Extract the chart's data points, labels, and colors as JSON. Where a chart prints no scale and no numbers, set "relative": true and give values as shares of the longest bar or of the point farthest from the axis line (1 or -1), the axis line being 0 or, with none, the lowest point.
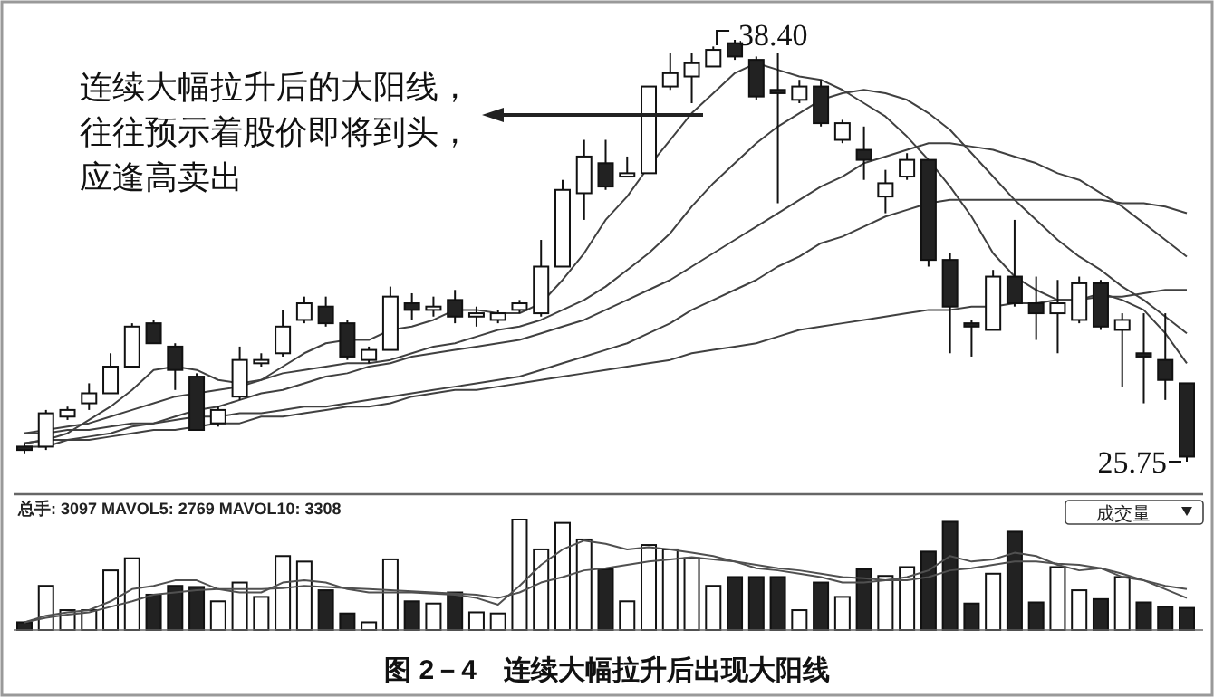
{
  "chart_data": [
    {
      "type": "candlestick",
      "title": "图 2－4　连续大幅拉升后出现大阳线",
      "categories": [
        null,
        null,
        null,
        null,
        null,
        null,
        null,
        null,
        null,
        null,
        null,
        null,
        null,
        null,
        null,
        null,
        null,
        null,
        null,
        null,
        null,
        null,
        null,
        null,
        null,
        null,
        null,
        null,
        null,
        null,
        null,
        null,
        null,
        null,
        null,
        null,
        null,
        null,
        null,
        null,
        null,
        null,
        null,
        null,
        null,
        null,
        null,
        null,
        null,
        null,
        null,
        null,
        null,
        null,
        null
      ],
      "ohlc": [
        [
          26.2,
          26.3,
          26.0,
          26.1
        ],
        [
          26.2,
          27.3,
          26.1,
          27.2
        ],
        [
          27.1,
          27.4,
          27.0,
          27.3
        ],
        [
          27.5,
          28.1,
          27.3,
          27.8
        ],
        [
          27.8,
          29.0,
          27.8,
          28.6
        ],
        [
          28.6,
          29.9,
          28.6,
          29.8
        ],
        [
          29.9,
          30.0,
          29.3,
          29.3
        ],
        [
          29.2,
          29.3,
          27.9,
          28.5
        ],
        [
          28.3,
          28.4,
          26.7,
          26.7
        ],
        [
          26.9,
          27.4,
          26.8,
          27.3
        ],
        [
          27.7,
          29.2,
          27.6,
          28.8
        ],
        [
          28.7,
          29.0,
          28.6,
          28.8
        ],
        [
          29.0,
          30.3,
          28.9,
          29.8
        ],
        [
          30.0,
          30.7,
          29.9,
          30.5
        ],
        [
          30.4,
          30.7,
          29.8,
          29.9
        ],
        [
          29.9,
          30.0,
          28.8,
          28.9
        ],
        [
          28.8,
          29.2,
          28.7,
          29.1
        ],
        [
          29.1,
          31.0,
          29.1,
          30.7
        ],
        [
          30.5,
          30.8,
          30.0,
          30.3
        ],
        [
          30.3,
          30.7,
          30.1,
          30.4
        ],
        [
          30.6,
          30.9,
          29.9,
          30.1
        ],
        [
          30.1,
          30.4,
          29.8,
          30.2
        ],
        [
          30.0,
          30.3,
          29.9,
          30.2
        ],
        [
          30.3,
          30.6,
          30.2,
          30.5
        ],
        [
          30.2,
          32.4,
          30.1,
          31.6
        ],
        [
          31.6,
          34.2,
          31.6,
          33.9
        ],
        [
          33.8,
          35.4,
          33.0,
          34.9
        ],
        [
          34.7,
          35.4,
          33.9,
          34.0
        ],
        [
          34.3,
          34.9,
          34.3,
          34.4
        ],
        [
          34.4,
          37.0,
          34.4,
          37.0
        ],
        [
          37.0,
          38.0,
          36.9,
          37.4
        ],
        [
          37.3,
          38.0,
          36.5,
          37.7
        ],
        [
          37.6,
          38.2,
          37.6,
          38.1
        ],
        [
          38.3,
          38.4,
          37.8,
          37.9
        ],
        [
          37.8,
          37.9,
          36.6,
          36.7
        ],
        [
          36.9,
          38.0,
          33.5,
          36.8
        ],
        [
          36.6,
          37.2,
          36.5,
          37.0
        ],
        [
          37.0,
          37.2,
          35.8,
          35.9
        ],
        [
          35.4,
          36.0,
          35.3,
          35.9
        ],
        [
          35.1,
          35.8,
          34.2,
          34.8
        ],
        [
          33.7,
          34.5,
          33.2,
          34.1
        ],
        [
          34.3,
          35.0,
          34.2,
          34.8
        ],
        [
          34.8,
          34.8,
          31.6,
          31.8
        ],
        [
          31.8,
          32.0,
          29.0,
          30.4
        ],
        [
          29.9,
          30.0,
          28.9,
          29.8
        ],
        [
          29.7,
          31.5,
          29.7,
          31.3
        ],
        [
          31.3,
          33.0,
          30.4,
          30.5
        ],
        [
          30.5,
          31.3,
          29.4,
          30.2
        ],
        [
          30.2,
          31.2,
          29.0,
          30.5
        ],
        [
          30.0,
          31.3,
          29.9,
          31.1
        ],
        [
          31.1,
          31.2,
          29.7,
          29.8
        ],
        [
          29.7,
          30.2,
          28.0,
          30.0
        ],
        [
          29.0,
          30.2,
          27.5,
          28.9
        ],
        [
          28.8,
          30.2,
          27.6,
          28.2
        ],
        [
          28.1,
          28.1,
          25.75,
          25.9
        ]
      ],
      "series": [
        {
          "type": "line",
          "color": "#404040",
          "values": [
            26.3,
            26.4,
            26.6,
            27.0,
            27.4,
            27.9,
            28.5,
            28.6,
            28.5,
            28.2,
            28.1,
            28.2,
            28.6,
            29.0,
            29.3,
            29.4,
            29.4,
            29.7,
            29.8,
            30.0,
            30.3,
            30.3,
            30.2,
            30.2,
            30.5,
            31.2,
            32.0,
            33.0,
            33.7,
            34.6,
            35.4,
            36.2,
            36.8,
            37.4,
            37.7,
            37.5,
            37.3,
            37.2,
            36.9,
            36.5,
            36.1,
            35.5,
            34.8,
            34.0,
            33.1,
            32.0,
            31.3,
            30.9,
            30.6,
            30.6,
            30.8,
            30.6,
            30.3,
            29.6,
            28.7
          ]
        },
        {
          "type": "line",
          "color": "#404040",
          "values": [
            26.6,
            26.7,
            26.8,
            26.9,
            27.1,
            27.3,
            27.5,
            27.7,
            27.8,
            27.9,
            28.0,
            28.2,
            28.4,
            28.5,
            28.6,
            28.7,
            28.7,
            28.8,
            29.0,
            29.2,
            29.3,
            29.5,
            29.7,
            29.8,
            30.0,
            30.3,
            30.6,
            31.0,
            31.5,
            32.0,
            32.6,
            33.4,
            34.1,
            34.7,
            35.3,
            35.8,
            36.2,
            36.6,
            36.8,
            36.9,
            36.8,
            36.6,
            36.2,
            35.7,
            35.0,
            34.3,
            33.6,
            33.0,
            32.4,
            31.9,
            31.5,
            31.0,
            30.6,
            30.1,
            29.6
          ]
        },
        {
          "type": "line",
          "color": "#404040",
          "values": [
            26.3,
            26.4,
            26.4,
            26.5,
            26.6,
            26.8,
            26.9,
            27.1,
            27.3,
            27.4,
            27.6,
            27.8,
            27.9,
            28.1,
            28.3,
            28.4,
            28.6,
            28.7,
            28.9,
            29.0,
            29.1,
            29.2,
            29.3,
            29.4,
            29.6,
            29.8,
            30.0,
            30.3,
            30.6,
            30.9,
            31.2,
            31.6,
            32.0,
            32.4,
            32.8,
            33.2,
            33.6,
            34.0,
            34.3,
            34.7,
            34.9,
            35.1,
            35.3,
            35.3,
            35.2,
            35.1,
            34.9,
            34.7,
            34.4,
            34.2,
            33.8,
            33.4,
            32.9,
            32.4,
            31.9
          ]
        },
        {
          "type": "line",
          "color": "#404040",
          "values": [
            26.6,
            26.6,
            26.7,
            26.7,
            26.8,
            26.9,
            26.9,
            27.0,
            27.1,
            27.1,
            27.2,
            27.2,
            27.3,
            27.4,
            27.4,
            27.5,
            27.6,
            27.7,
            27.8,
            27.9,
            28.0,
            28.1,
            28.2,
            28.3,
            28.5,
            28.7,
            28.9,
            29.1,
            29.3,
            29.6,
            29.9,
            30.3,
            30.6,
            30.9,
            31.2,
            31.6,
            31.9,
            32.3,
            32.5,
            32.8,
            33.1,
            33.3,
            33.5,
            33.6,
            33.6,
            33.6,
            33.6,
            33.6,
            33.6,
            33.6,
            33.6,
            33.5,
            33.5,
            33.4,
            33.2
          ]
        },
        {
          "type": "line",
          "color": "#404040",
          "values": [
            26.2,
            26.2,
            26.4,
            26.4,
            26.5,
            26.6,
            26.7,
            26.7,
            26.8,
            26.9,
            26.9,
            27.1,
            27.1,
            27.2,
            27.3,
            27.4,
            27.4,
            27.5,
            27.7,
            27.8,
            27.9,
            27.9,
            28.0,
            28.1,
            28.2,
            28.3,
            28.4,
            28.5,
            28.6,
            28.7,
            28.8,
            29.0,
            29.1,
            29.2,
            29.3,
            29.5,
            29.7,
            29.8,
            29.9,
            30.0,
            30.1,
            30.2,
            30.3,
            30.3,
            30.4,
            30.4,
            30.5,
            30.5,
            30.6,
            30.6,
            30.7,
            30.7,
            30.8,
            30.9,
            30.9
          ]
        }
      ],
      "annotations": [
        "连续大幅拉升后的大阳线，",
        "往往预示着股价即将到头，",
        "应逢高卖出",
        "38.40",
        "25.75"
      ]
    },
    {
      "type": "bar",
      "relative": true,
      "categories": [
        null,
        null,
        null,
        null,
        null,
        null,
        null,
        null,
        null,
        null,
        null,
        null,
        null,
        null,
        null,
        null,
        null,
        null,
        null,
        null,
        null,
        null,
        null,
        null,
        null,
        null,
        null,
        null,
        null,
        null,
        null,
        null,
        null,
        null,
        null,
        null,
        null,
        null,
        null,
        null,
        null,
        null,
        null,
        null,
        null,
        null,
        null,
        null,
        null,
        null,
        null,
        null,
        null,
        null,
        null
      ],
      "series": [
        {
          "type": "bar",
          "values": [
            0.07,
            0.4,
            0.18,
            0.18,
            0.54,
            0.65,
            0.32,
            0.4,
            0.39,
            0.26,
            0.43,
            0.3,
            0.67,
            0.62,
            0.36,
            0.15,
            0.07,
            0.64,
            0.26,
            0.24,
            0.34,
            0.16,
            0.15,
            1,
            0.73,
            0.97,
            0.82,
            0.55,
            0.26,
            0.77,
            0.73,
            0.65,
            0.4,
            0.48,
            0.48,
            0.48,
            0.18,
            0.43,
            0.3,
            0.55,
            0.49,
            0.57,
            0.71,
            0.98,
            0.24,
            0.51,
            0.89,
            0.25,
            0.57,
            0.36,
            0.28,
            0.48,
            0.25,
            0.21,
            0.2
          ],
          "colors": [
            "#222222",
            "#ffffff",
            "#ffffff",
            "#ffffff",
            "#ffffff",
            "#ffffff",
            "#222222",
            "#222222",
            "#222222",
            "#ffffff",
            "#ffffff",
            "#ffffff",
            "#ffffff",
            "#ffffff",
            "#222222",
            "#222222",
            "#ffffff",
            "#ffffff",
            "#222222",
            "#ffffff",
            "#222222",
            "#ffffff",
            "#ffffff",
            "#ffffff",
            "#ffffff",
            "#ffffff",
            "#ffffff",
            "#222222",
            "#ffffff",
            "#ffffff",
            "#ffffff",
            "#ffffff",
            "#ffffff",
            "#222222",
            "#222222",
            "#222222",
            "#ffffff",
            "#222222",
            "#ffffff",
            "#222222",
            "#ffffff",
            "#ffffff",
            "#222222",
            "#222222",
            "#222222",
            "#ffffff",
            "#222222",
            "#222222",
            "#ffffff",
            "#ffffff",
            "#222222",
            "#ffffff",
            "#222222",
            "#222222",
            "#222222"
          ]
        },
        {
          "type": "line",
          "color": "#505050",
          "values": [
            0.07,
            0.13,
            0.16,
            0.18,
            0.26,
            0.37,
            0.4,
            0.45,
            0.45,
            0.37,
            0.34,
            0.34,
            0.43,
            0.45,
            0.43,
            0.37,
            0.34,
            0.34,
            0.34,
            0.33,
            0.32,
            0.29,
            0.23,
            0.4,
            0.59,
            0.73,
            0.81,
            0.78,
            0.73,
            0.75,
            0.73,
            0.7,
            0.67,
            0.62,
            0.56,
            0.54,
            0.51,
            0.48,
            0.43,
            0.43,
            0.45,
            0.48,
            0.54,
            0.67,
            0.62,
            0.64,
            0.7,
            0.67,
            0.59,
            0.54,
            0.56,
            0.48,
            0.45,
            0.4,
            0.37
          ]
        },
        {
          "type": "line",
          "color": "#505050",
          "values": [
            0.07,
            0.11,
            0.14,
            0.16,
            0.21,
            0.26,
            0.32,
            0.34,
            0.36,
            0.37,
            0.37,
            0.37,
            0.38,
            0.4,
            0.39,
            0.38,
            0.37,
            0.36,
            0.35,
            0.34,
            0.33,
            0.32,
            0.29,
            0.34,
            0.43,
            0.48,
            0.54,
            0.56,
            0.59,
            0.62,
            0.64,
            0.66,
            0.64,
            0.62,
            0.59,
            0.56,
            0.54,
            0.51,
            0.48,
            0.47,
            0.45,
            0.45,
            0.48,
            0.54,
            0.56,
            0.59,
            0.62,
            0.62,
            0.6,
            0.59,
            0.56,
            0.51,
            0.45,
            0.37,
            0.29
          ]
        }
      ],
      "annotations": [
        "总手: 3097 MAVOL5: 2769 MAVOL10: 3308",
        "成交量"
      ]
    }
  ]
}
